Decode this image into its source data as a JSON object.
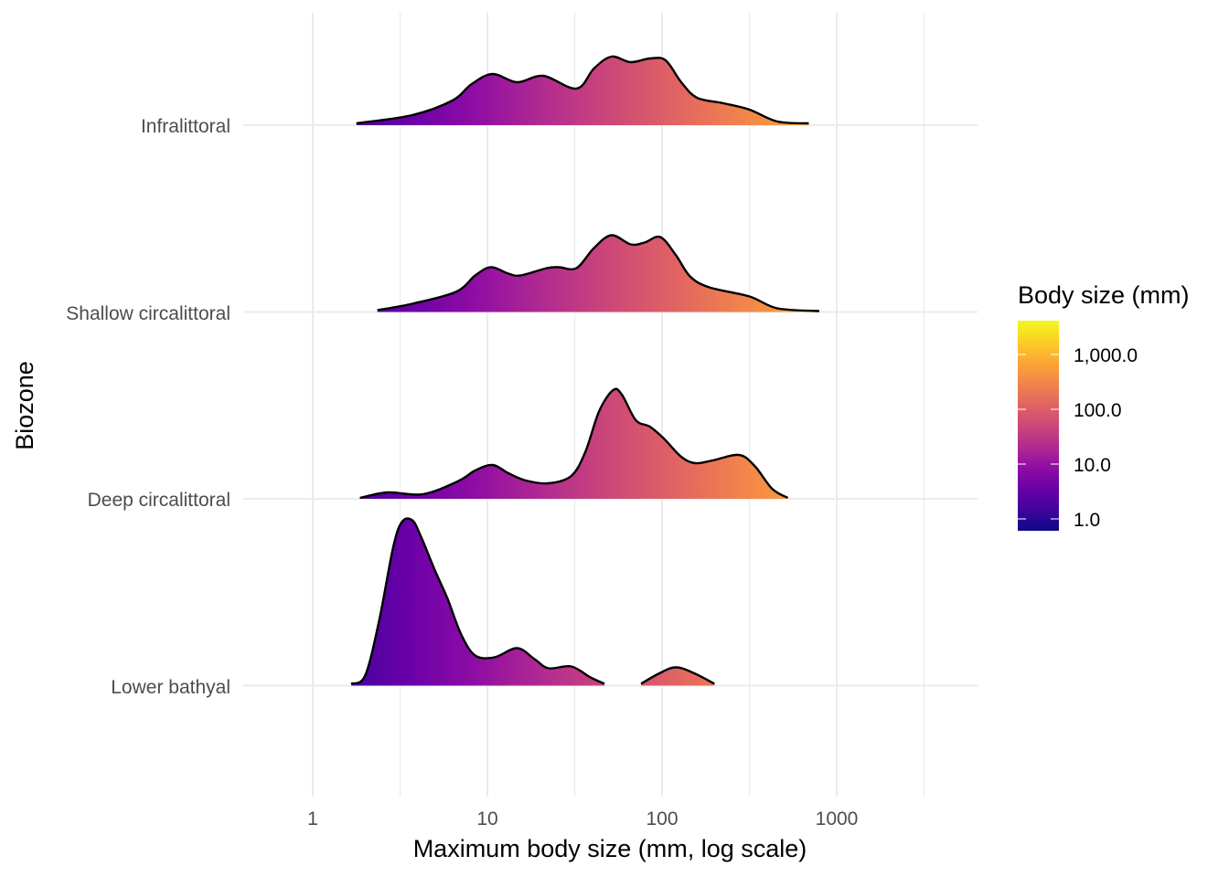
{
  "chart_data": {
    "type": "ridgeline",
    "xlabel": "Maximum body size (mm, log scale)",
    "ylabel": "Biozone",
    "x_scale": "log10",
    "x_ticks": [
      "1",
      "10",
      "100",
      "1000"
    ],
    "x_tick_values": [
      1,
      10,
      100,
      1000
    ],
    "xlim_log10": [
      -1.0,
      3.2
    ],
    "grid": true,
    "legend": {
      "title": "Body size (mm)",
      "position": "right",
      "colormap": "plasma",
      "labels": [
        "1,000.0",
        "100.0",
        "10.0",
        "1.0"
      ],
      "label_values": [
        1000,
        100,
        10,
        1
      ],
      "range_log10": [
        -0.22,
        3.62
      ],
      "colors": [
        "#0d0887",
        "#41049d",
        "#6a00a8",
        "#8f0da4",
        "#b12a90",
        "#cc4778",
        "#e16462",
        "#f2844b",
        "#fca636",
        "#fcce25",
        "#f0f921"
      ]
    },
    "series_note": "points are [log10 body size, relative density height]",
    "series": [
      {
        "name": "Infralittoral",
        "segments": [
          [
            [
              0.25,
              0.02
            ],
            [
              0.57,
              0.11
            ],
            [
              0.8,
              0.27
            ],
            [
              0.91,
              0.45
            ],
            [
              1.03,
              0.56
            ],
            [
              1.17,
              0.47
            ],
            [
              1.32,
              0.54
            ],
            [
              1.51,
              0.4
            ],
            [
              1.61,
              0.62
            ],
            [
              1.71,
              0.75
            ],
            [
              1.82,
              0.69
            ],
            [
              1.93,
              0.73
            ],
            [
              2.02,
              0.71
            ],
            [
              2.11,
              0.47
            ],
            [
              2.2,
              0.3
            ],
            [
              2.35,
              0.24
            ],
            [
              2.5,
              0.17
            ],
            [
              2.66,
              0.04
            ],
            [
              2.84,
              0.02
            ]
          ]
        ]
      },
      {
        "name": "Shallow circalittoral",
        "segments": [
          [
            [
              0.37,
              0.02
            ],
            [
              0.57,
              0.09
            ],
            [
              0.82,
              0.22
            ],
            [
              0.93,
              0.4
            ],
            [
              1.02,
              0.49
            ],
            [
              1.12,
              0.42
            ],
            [
              1.19,
              0.4
            ],
            [
              1.34,
              0.48
            ],
            [
              1.41,
              0.49
            ],
            [
              1.51,
              0.48
            ],
            [
              1.61,
              0.7
            ],
            [
              1.71,
              0.84
            ],
            [
              1.82,
              0.74
            ],
            [
              1.9,
              0.76
            ],
            [
              1.99,
              0.82
            ],
            [
              2.08,
              0.62
            ],
            [
              2.16,
              0.39
            ],
            [
              2.27,
              0.27
            ],
            [
              2.5,
              0.17
            ],
            [
              2.66,
              0.04
            ],
            [
              2.9,
              0.01
            ]
          ]
        ]
      },
      {
        "name": "Deep circalittoral",
        "segments": [
          [
            [
              0.27,
              0.01
            ],
            [
              0.43,
              0.07
            ],
            [
              0.63,
              0.05
            ],
            [
              0.83,
              0.19
            ],
            [
              0.93,
              0.31
            ],
            [
              1.03,
              0.37
            ],
            [
              1.12,
              0.28
            ],
            [
              1.22,
              0.2
            ],
            [
              1.35,
              0.17
            ],
            [
              1.48,
              0.25
            ],
            [
              1.56,
              0.51
            ],
            [
              1.64,
              0.96
            ],
            [
              1.72,
              1.19
            ],
            [
              1.77,
              1.14
            ],
            [
              1.85,
              0.86
            ],
            [
              1.93,
              0.79
            ],
            [
              2.01,
              0.66
            ],
            [
              2.11,
              0.46
            ],
            [
              2.19,
              0.39
            ],
            [
              2.29,
              0.42
            ],
            [
              2.44,
              0.48
            ],
            [
              2.53,
              0.36
            ],
            [
              2.63,
              0.11
            ],
            [
              2.72,
              0.01
            ]
          ]
        ]
      },
      {
        "name": "Lower bathyal",
        "segments": [
          [
            [
              0.22,
              0.02
            ],
            [
              0.3,
              0.11
            ],
            [
              0.38,
              0.71
            ],
            [
              0.46,
              1.51
            ],
            [
              0.51,
              1.79
            ],
            [
              0.57,
              1.81
            ],
            [
              0.62,
              1.63
            ],
            [
              0.7,
              1.26
            ],
            [
              0.77,
              0.96
            ],
            [
              0.85,
              0.56
            ],
            [
              0.93,
              0.33
            ],
            [
              1.04,
              0.31
            ],
            [
              1.17,
              0.41
            ],
            [
              1.27,
              0.29
            ],
            [
              1.35,
              0.19
            ],
            [
              1.48,
              0.21
            ],
            [
              1.59,
              0.09
            ],
            [
              1.67,
              0.02
            ]
          ],
          [
            [
              1.88,
              0.02
            ],
            [
              1.98,
              0.13
            ],
            [
              2.08,
              0.2
            ],
            [
              2.19,
              0.13
            ],
            [
              2.3,
              0.02
            ]
          ]
        ]
      }
    ]
  }
}
